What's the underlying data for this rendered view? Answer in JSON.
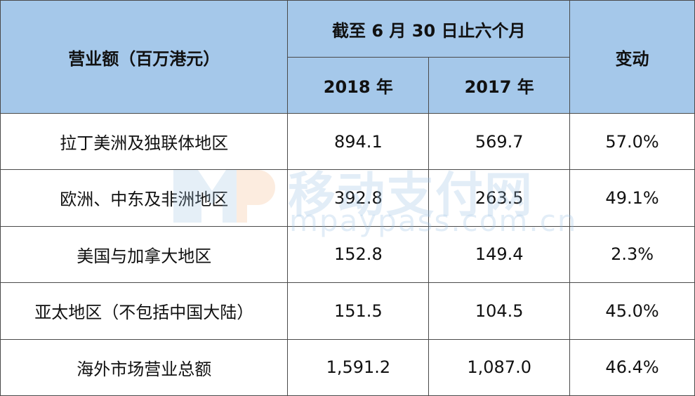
{
  "header": {
    "item": "营业额（百万港元）",
    "period": "截至 6 月 30 日止六个月",
    "years": [
      "2018 年",
      "2017 年"
    ],
    "change": "变动"
  },
  "table": {
    "rows": [
      [
        "拉丁美洲及独联体地区",
        "894.1",
        "569.7",
        "57.0%"
      ],
      [
        "欧洲、中东及非洲地区",
        "392.8",
        "263.5",
        "49.1%"
      ],
      [
        "美国与加拿大地区",
        "152.8",
        "149.4",
        "2.3%"
      ],
      [
        "亚太地区（不包括中国大陆）",
        "151.5",
        "104.5",
        "45.0%"
      ],
      [
        "海外市场营业总额",
        "1,591.2",
        "1,087.0",
        "46.4%"
      ]
    ]
  },
  "watermark": {
    "title": "移动支付网",
    "url": "mpaypass.com.cn"
  }
}
